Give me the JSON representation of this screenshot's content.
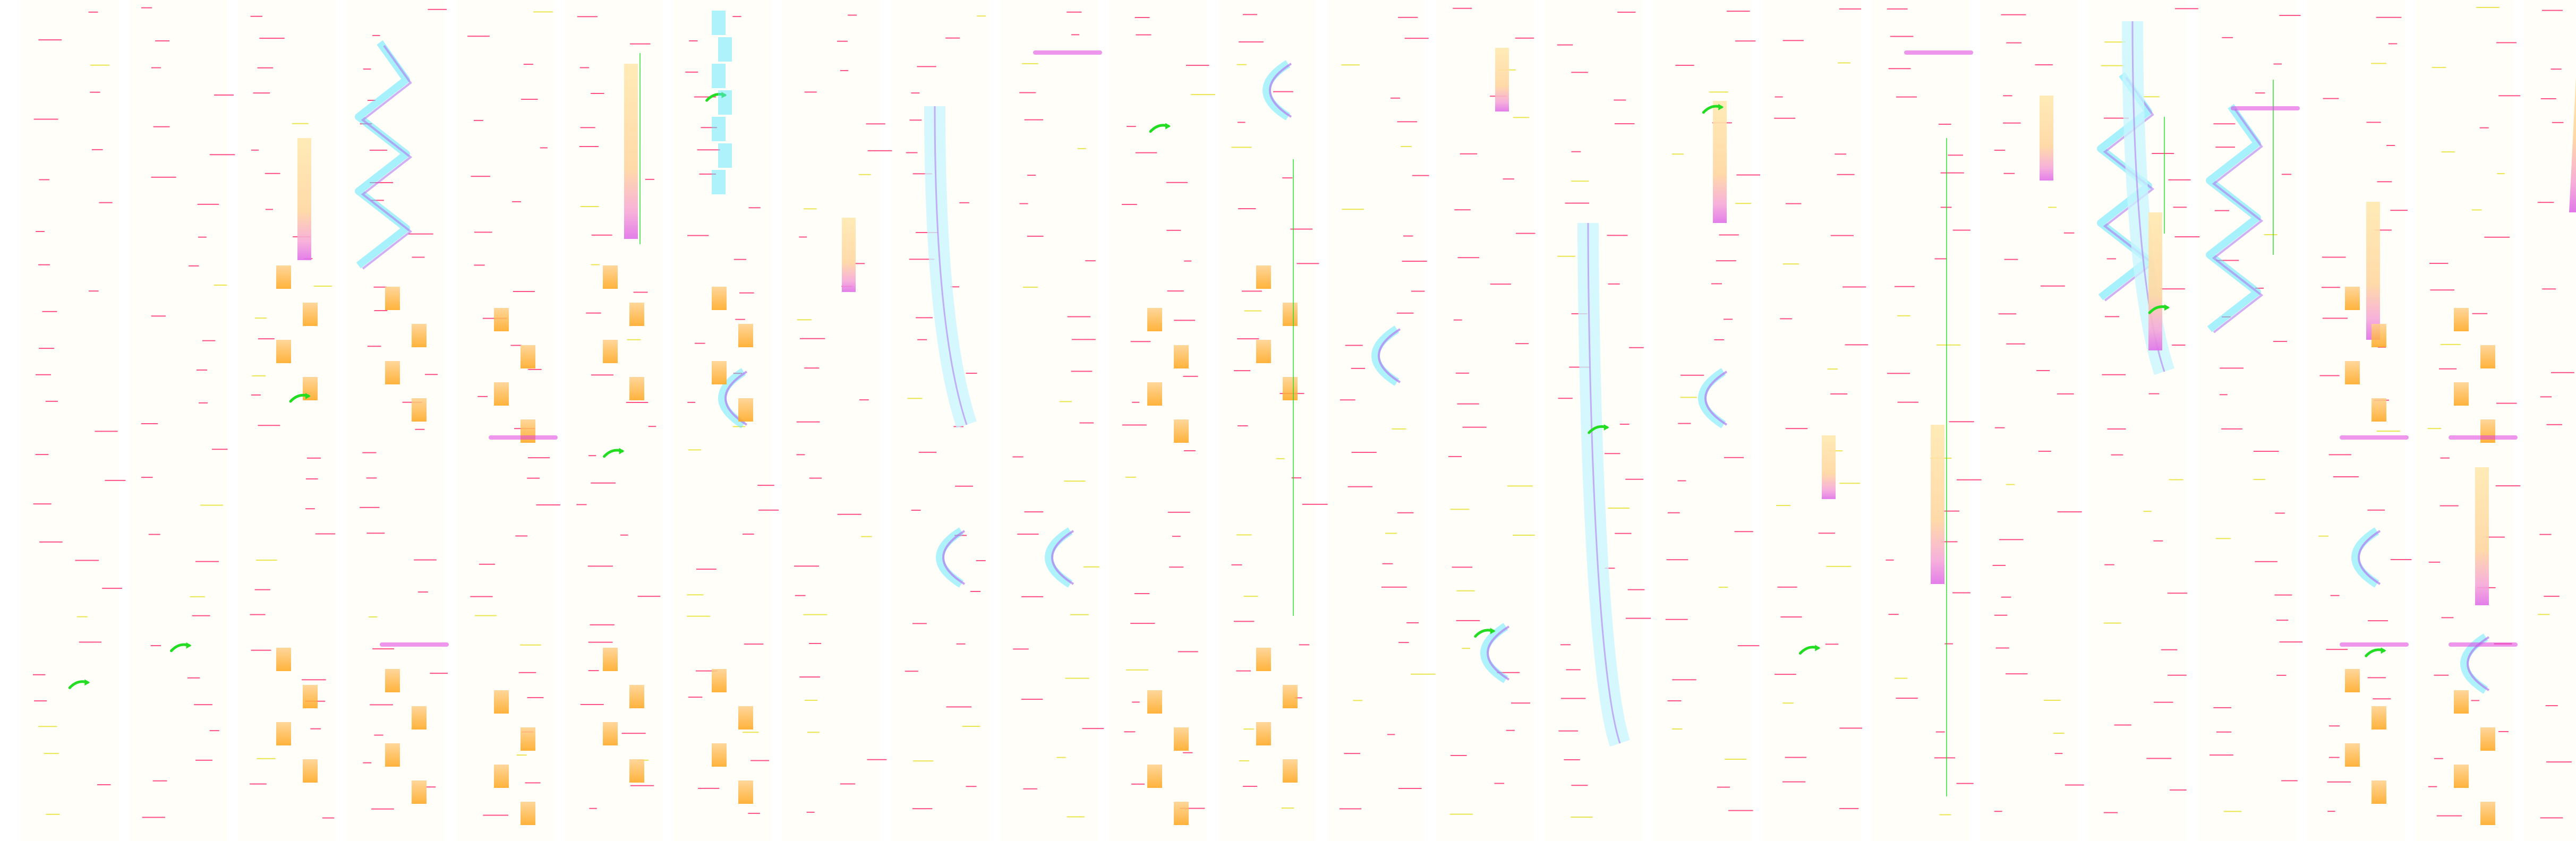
{
  "palette": {
    "background": "#ffffff",
    "cyan": "#5ee6ff",
    "cyan_light": "#c7f6ff",
    "violet": "#b07cf0",
    "violet_light": "#dcc8ff",
    "pink": "#f07ac8",
    "magenta": "#e040e0",
    "orange": "#ffb020",
    "peach": "#ffd090",
    "yellow": "#ffe890",
    "green": "#22dd22",
    "label_red": "#ff3070",
    "label_yellow": "#e8e030"
  },
  "motifs": [
    "cyan-zigzag-band",
    "violet-arc-band",
    "peach-vertical-bar",
    "orange-block-stack",
    "green-arrow-glyph",
    "magenta-node-bar",
    "green-connector-line",
    "pink-spike"
  ]
}
